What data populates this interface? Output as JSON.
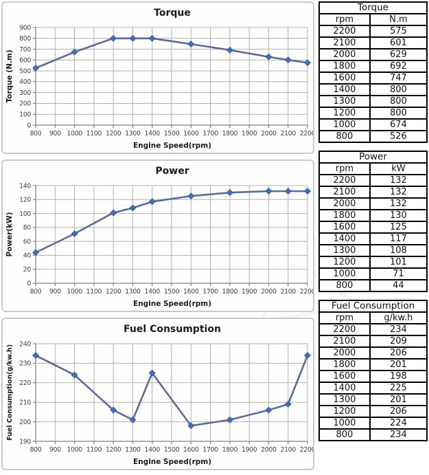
{
  "styles": {
    "line_color": "#5a6b96",
    "marker_color": "#3e6fc0",
    "marker_stroke": "#33568f",
    "grid_color": "#b0b0b0",
    "axis_color": "#808080"
  },
  "chart_data": [
    {
      "type": "line",
      "title": "Torque",
      "xlabel": "Engine Speed(rpm)",
      "ylabel": "Torque (N.m)",
      "x": [
        800,
        1000,
        1200,
        1300,
        1400,
        1600,
        1800,
        2000,
        2100,
        2200
      ],
      "values": [
        526,
        674,
        800,
        800,
        800,
        747,
        692,
        629,
        601,
        575
      ],
      "xlim": [
        800,
        2200
      ],
      "xstep": 100,
      "ylim": [
        0,
        900
      ],
      "ystep": 100,
      "grid": true,
      "legend": false
    },
    {
      "type": "line",
      "title": "Power",
      "xlabel": "Engine Speed(rpm)",
      "ylabel": "Power(kW)",
      "x": [
        800,
        1000,
        1200,
        1300,
        1400,
        1600,
        1800,
        2000,
        2100,
        2200
      ],
      "values": [
        44,
        71,
        101,
        108,
        117,
        125,
        130,
        132,
        132,
        132
      ],
      "xlim": [
        800,
        2200
      ],
      "xstep": 100,
      "ylim": [
        0,
        140
      ],
      "ystep": 20,
      "grid": true,
      "legend": false
    },
    {
      "type": "line",
      "title": "Fuel Consumption",
      "xlabel": "Engine Speed(rpm)",
      "ylabel": "Fuel Consumption(g/kw.h)",
      "x": [
        800,
        1000,
        1200,
        1300,
        1400,
        1600,
        1800,
        2000,
        2100,
        2200
      ],
      "values": [
        234,
        224,
        206,
        201,
        225,
        198,
        201,
        206,
        209,
        234
      ],
      "xlim": [
        800,
        2200
      ],
      "xstep": 100,
      "ylim": [
        190,
        240
      ],
      "ystep": 10,
      "grid": true,
      "legend": false
    }
  ],
  "tables": [
    {
      "title": "Torque",
      "columns": [
        "rpm",
        "N.m"
      ],
      "rows": [
        [
          "2200",
          "575"
        ],
        [
          "2100",
          "601"
        ],
        [
          "2000",
          "629"
        ],
        [
          "1800",
          "692"
        ],
        [
          "1600",
          "747"
        ],
        [
          "1400",
          "800"
        ],
        [
          "1300",
          "800"
        ],
        [
          "1200",
          "800"
        ],
        [
          "1000",
          "674"
        ],
        [
          "800",
          "526"
        ]
      ]
    },
    {
      "title": "Power",
      "columns": [
        "rpm",
        "kW"
      ],
      "rows": [
        [
          "2200",
          "132"
        ],
        [
          "2100",
          "132"
        ],
        [
          "2000",
          "132"
        ],
        [
          "1800",
          "130"
        ],
        [
          "1600",
          "125"
        ],
        [
          "1400",
          "117"
        ],
        [
          "1300",
          "108"
        ],
        [
          "1200",
          "101"
        ],
        [
          "1000",
          "71"
        ],
        [
          "800",
          "44"
        ]
      ]
    },
    {
      "title": "Fuel Consumption",
      "columns": [
        "rpm",
        "g/kw.h"
      ],
      "rows": [
        [
          "2200",
          "234"
        ],
        [
          "2100",
          "209"
        ],
        [
          "2000",
          "206"
        ],
        [
          "1800",
          "201"
        ],
        [
          "1600",
          "198"
        ],
        [
          "1400",
          "225"
        ],
        [
          "1300",
          "201"
        ],
        [
          "1200",
          "206"
        ],
        [
          "1000",
          "224"
        ],
        [
          "800",
          "234"
        ]
      ]
    }
  ]
}
